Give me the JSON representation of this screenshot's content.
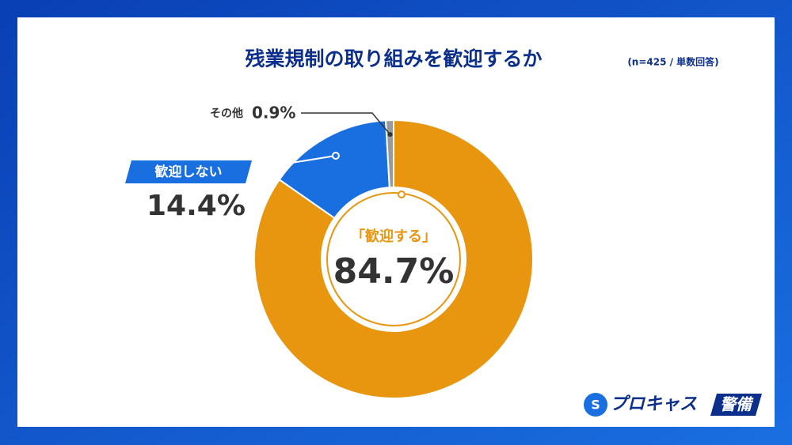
{
  "chart_data": {
    "type": "donut",
    "title": "残業規制の取り組みを歓迎するか",
    "subtitle": "(n=425 / 単数回答)",
    "categories": [
      "「歓迎する」",
      "歓迎しない",
      "その他"
    ],
    "values": [
      84.7,
      14.4,
      0.9
    ],
    "value_labels": [
      "84.7%",
      "14.4%",
      "0.9%"
    ],
    "colors": [
      "#e8960f",
      "#1a6fe0",
      "#9a9a9a"
    ]
  },
  "brand": {
    "name": "プロキャス",
    "tag": "警備"
  }
}
